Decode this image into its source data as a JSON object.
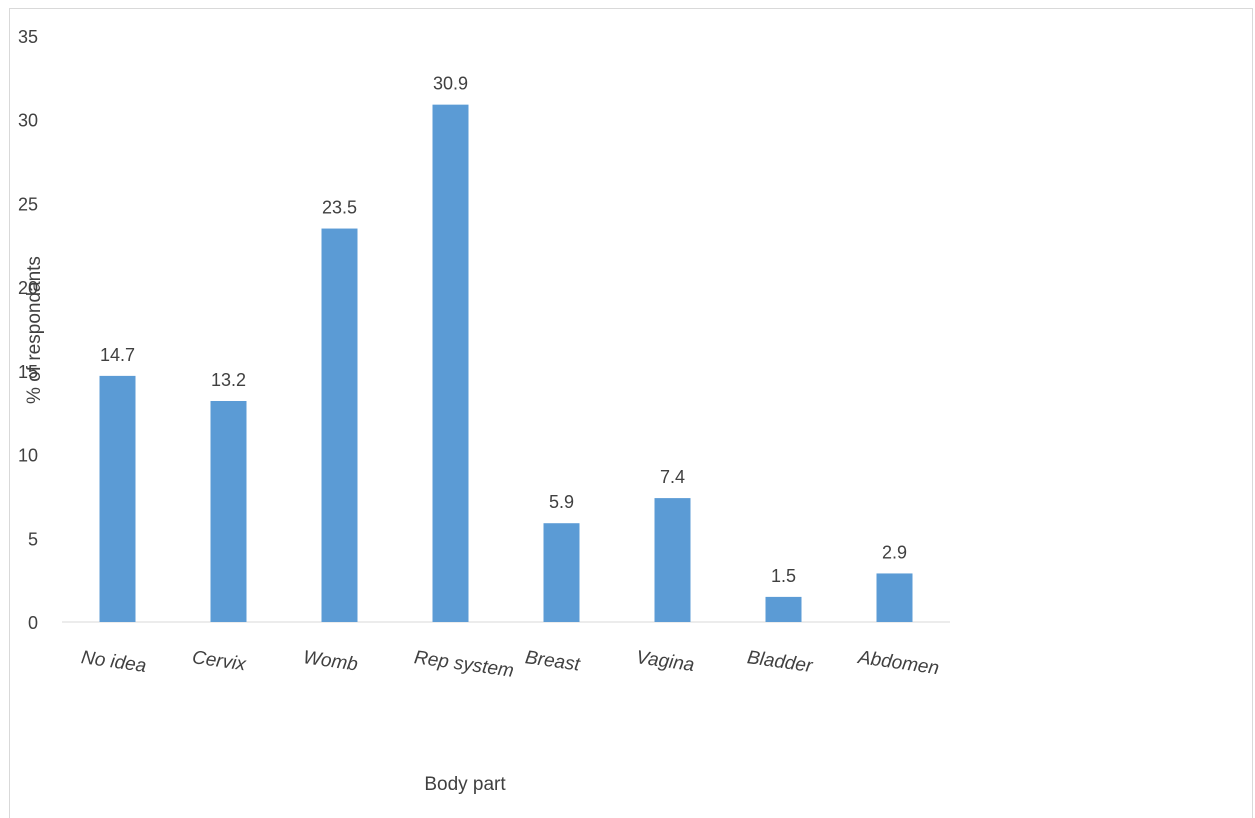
{
  "chart_data": {
    "type": "bar",
    "categories": [
      "No idea",
      "Cervix",
      "Womb",
      "Rep system",
      "Breast",
      "Vagina",
      "Bladder",
      "Abdomen"
    ],
    "values": [
      14.7,
      13.2,
      23.5,
      30.9,
      5.9,
      7.4,
      1.5,
      2.9
    ],
    "data_labels": [
      "14.7",
      "13.2",
      "23.5",
      "30.9",
      "5.9",
      "7.4",
      "1.5",
      "2.9"
    ],
    "xlabel": "Body part",
    "ylabel": "% of respondants",
    "ylim": [
      0,
      35
    ],
    "yticks": [
      "0",
      "5",
      "10",
      "15",
      "20",
      "25",
      "30",
      "35"
    ],
    "grid": false,
    "legend": "none",
    "bar_color": "#5b9bd5"
  }
}
